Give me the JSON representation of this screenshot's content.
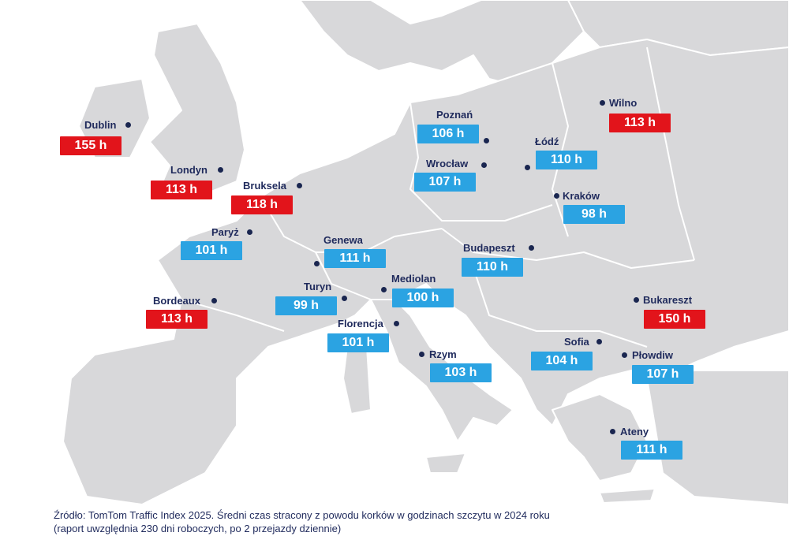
{
  "colors": {
    "high": "#e2141b",
    "normal": "#2ba3e2",
    "land": "#d8d8da",
    "sea": "#ffffff",
    "border": "#ffffff"
  },
  "cities": [
    {
      "id": "dublin",
      "name": "Dublin",
      "value": "155 h",
      "level": "high"
    },
    {
      "id": "londyn",
      "name": "Londyn",
      "value": "113 h",
      "level": "high"
    },
    {
      "id": "bruksela",
      "name": "Bruksela",
      "value": "118 h",
      "level": "high"
    },
    {
      "id": "paryz",
      "name": "Paryż",
      "value": "101 h",
      "level": "normal"
    },
    {
      "id": "bordeaux",
      "name": "Bordeaux",
      "value": "113 h",
      "level": "high"
    },
    {
      "id": "genewa",
      "name": "Genewa",
      "value": "111 h",
      "level": "normal"
    },
    {
      "id": "turyn",
      "name": "Turyn",
      "value": "99 h",
      "level": "normal"
    },
    {
      "id": "mediolan",
      "name": "Mediolan",
      "value": "100 h",
      "level": "normal"
    },
    {
      "id": "florencja",
      "name": "Florencja",
      "value": "101 h",
      "level": "normal"
    },
    {
      "id": "rzym",
      "name": "Rzym",
      "value": "103 h",
      "level": "normal"
    },
    {
      "id": "poznan",
      "name": "Poznań",
      "value": "106 h",
      "level": "normal"
    },
    {
      "id": "wroclaw",
      "name": "Wrocław",
      "value": "107 h",
      "level": "normal"
    },
    {
      "id": "lodz",
      "name": "Łódź",
      "value": "110 h",
      "level": "normal"
    },
    {
      "id": "krakow",
      "name": "Kraków",
      "value": "98 h",
      "level": "normal"
    },
    {
      "id": "wilno",
      "name": "Wilno",
      "value": "113 h",
      "level": "high"
    },
    {
      "id": "budapeszt",
      "name": "Budapeszt",
      "value": "110 h",
      "level": "normal"
    },
    {
      "id": "bukareszt",
      "name": "Bukareszt",
      "value": "150 h",
      "level": "high"
    },
    {
      "id": "sofia",
      "name": "Sofia",
      "value": "104 h",
      "level": "normal"
    },
    {
      "id": "plowdiw",
      "name": "Płowdiw",
      "value": "107 h",
      "level": "normal"
    },
    {
      "id": "ateny",
      "name": "Ateny",
      "value": "111 h",
      "level": "normal"
    }
  ],
  "source": {
    "line1": "Źródło: TomTom Traffic Index 2025. Średni czas stracony z powodu korków w godzinach szczytu w 2024 roku",
    "line2": "(raport uwzględnia 230 dni roboczych, po 2 przejazdy dziennie)"
  }
}
